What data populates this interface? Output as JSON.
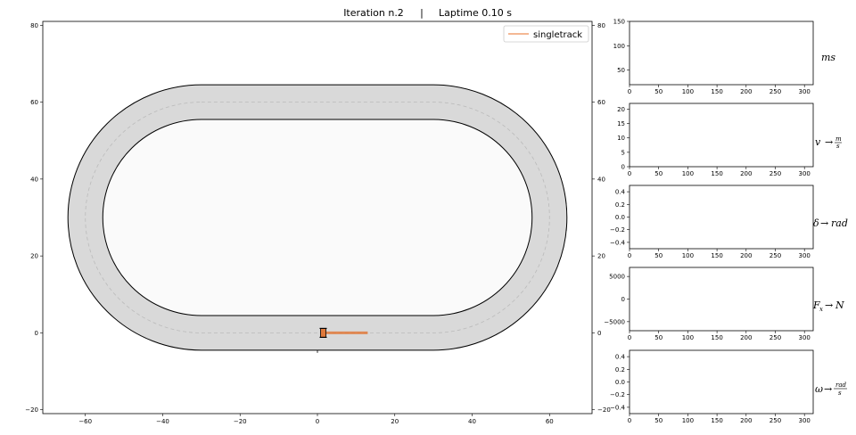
{
  "title": {
    "iteration": "Iteration n.2",
    "separator": "|",
    "laptime": "Laptime 0.10 s"
  },
  "colors": {
    "track_fill": "#d9d9d9",
    "infield": "#fafafa",
    "border": "#000000",
    "centerline": "#bbbbbb",
    "trajectory": "#f0a070",
    "vehicle": "#e07a3c"
  },
  "chart_data": [
    {
      "type": "line",
      "name": "track-map",
      "xlim": [
        -71,
        71
      ],
      "ylim": [
        -21,
        81
      ],
      "x_ticks": [
        -60,
        -40,
        -20,
        0,
        20,
        40,
        60
      ],
      "x_tick_labels": [
        "−60",
        "−40",
        "−20",
        "0",
        "20",
        "40",
        "60"
      ],
      "y_ticks": [
        -20,
        0,
        20,
        40,
        60,
        80
      ],
      "y_tick_labels": [
        "−20",
        "0",
        "20",
        "40",
        "60",
        "80"
      ],
      "track": {
        "center": [
          0,
          30
        ],
        "straight_half_length": 30,
        "outer_radius": 34.5,
        "inner_radius": 25.5,
        "centerline_radius": 30
      },
      "legend": {
        "label": "singletrack",
        "position": "top-right"
      },
      "series": [
        {
          "name": "singletrack",
          "x": [
            1,
            13
          ],
          "y": [
            0,
            0
          ]
        }
      ],
      "vehicle": {
        "x": 1.5,
        "y": 0
      }
    },
    {
      "type": "line",
      "name": "ms",
      "ylabel": "ms",
      "xlim": [
        0,
        315
      ],
      "ylim": [
        20,
        150
      ],
      "x_ticks": [
        0,
        50,
        100,
        150,
        200,
        250,
        300
      ],
      "y_ticks": [
        50,
        100,
        150
      ],
      "y_tick_labels": [
        "50",
        "100",
        "150"
      ],
      "series": []
    },
    {
      "type": "line",
      "name": "velocity",
      "ylabel": "v → m/s",
      "xlim": [
        0,
        315
      ],
      "ylim": [
        0,
        22
      ],
      "x_ticks": [
        0,
        50,
        100,
        150,
        200,
        250,
        300
      ],
      "y_ticks": [
        0,
        5,
        10,
        15,
        20
      ],
      "y_tick_labels": [
        "0",
        "5",
        "10",
        "15",
        "20"
      ],
      "series": []
    },
    {
      "type": "line",
      "name": "steering",
      "ylabel": "δ → rad",
      "xlim": [
        0,
        315
      ],
      "ylim": [
        -0.5,
        0.5
      ],
      "x_ticks": [
        0,
        50,
        100,
        150,
        200,
        250,
        300
      ],
      "y_ticks": [
        -0.4,
        -0.2,
        0.0,
        0.2,
        0.4
      ],
      "y_tick_labels": [
        "−0.4",
        "−0.2",
        "0.0",
        "0.2",
        "0.4"
      ],
      "series": []
    },
    {
      "type": "line",
      "name": "force",
      "ylabel": "Fx → N",
      "xlim": [
        0,
        315
      ],
      "ylim": [
        -7000,
        7000
      ],
      "x_ticks": [
        0,
        50,
        100,
        150,
        200,
        250,
        300
      ],
      "y_ticks": [
        -5000,
        0,
        5000
      ],
      "y_tick_labels": [
        "−5000",
        "0",
        "5000"
      ],
      "series": []
    },
    {
      "type": "line",
      "name": "yaw-rate",
      "ylabel": "ω → rad/s",
      "xlim": [
        0,
        315
      ],
      "ylim": [
        -0.5,
        0.5
      ],
      "x_ticks": [
        0,
        50,
        100,
        150,
        200,
        250,
        300
      ],
      "y_ticks": [
        -0.4,
        -0.2,
        0.0,
        0.2,
        0.4
      ],
      "y_tick_labels": [
        "−0.4",
        "−0.2",
        "0.0",
        "0.2",
        "0.4"
      ],
      "series": []
    }
  ]
}
